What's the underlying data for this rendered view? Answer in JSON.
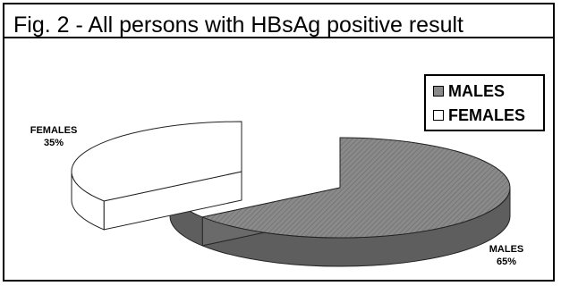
{
  "chart_data": {
    "type": "pie",
    "title": "Fig. 2 - All persons with HBsAg positive result",
    "categories": [
      "MALES",
      "FEMALES"
    ],
    "values": [
      65,
      35
    ],
    "value_labels": [
      "65%",
      "35%"
    ],
    "legend_position": "top-right",
    "colors": {
      "MALES": "#8a8a8a",
      "FEMALES": "#ffffff"
    },
    "style": "3d"
  }
}
